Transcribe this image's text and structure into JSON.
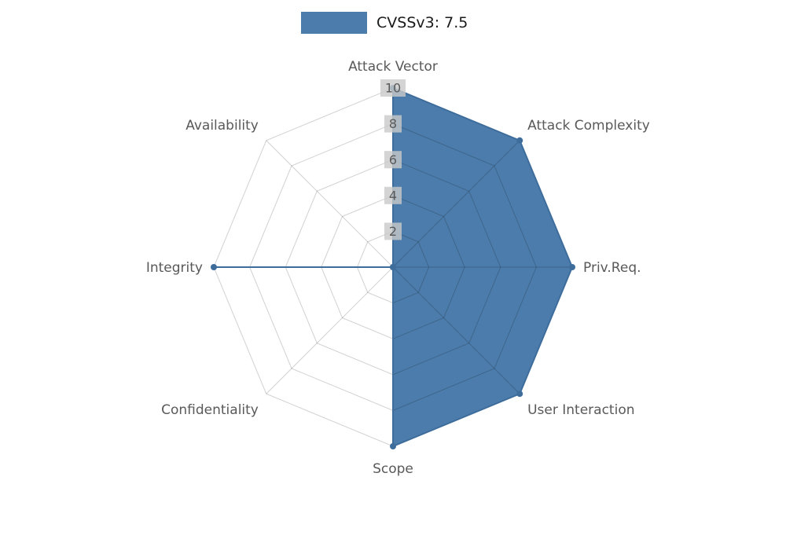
{
  "chart_data": {
    "type": "radar",
    "title": "CVSSv3: 7.5",
    "legend_position": "top-center",
    "axes": [
      "Attack Vector",
      "Attack Complexity",
      "Priv.Req.",
      "User Interaction",
      "Scope",
      "Confidentiality",
      "Integrity",
      "Availability"
    ],
    "series": [
      {
        "name": "CVSSv3: 7.5",
        "values": [
          10,
          10,
          10,
          10,
          10,
          0,
          10,
          0
        ]
      }
    ],
    "rlim": [
      0,
      10
    ],
    "rticks": [
      2,
      4,
      6,
      8,
      10
    ],
    "grid": true,
    "colors": {
      "fill": "#4c7cab",
      "stroke": "#3e6d9c",
      "grid": "rgba(0,0,0,0.18)",
      "label": "#595959",
      "tick_text": "#595959",
      "tick_bg": "#c9c9c9",
      "legend_text": "#1a1a1a",
      "background": "#ffffff"
    }
  }
}
